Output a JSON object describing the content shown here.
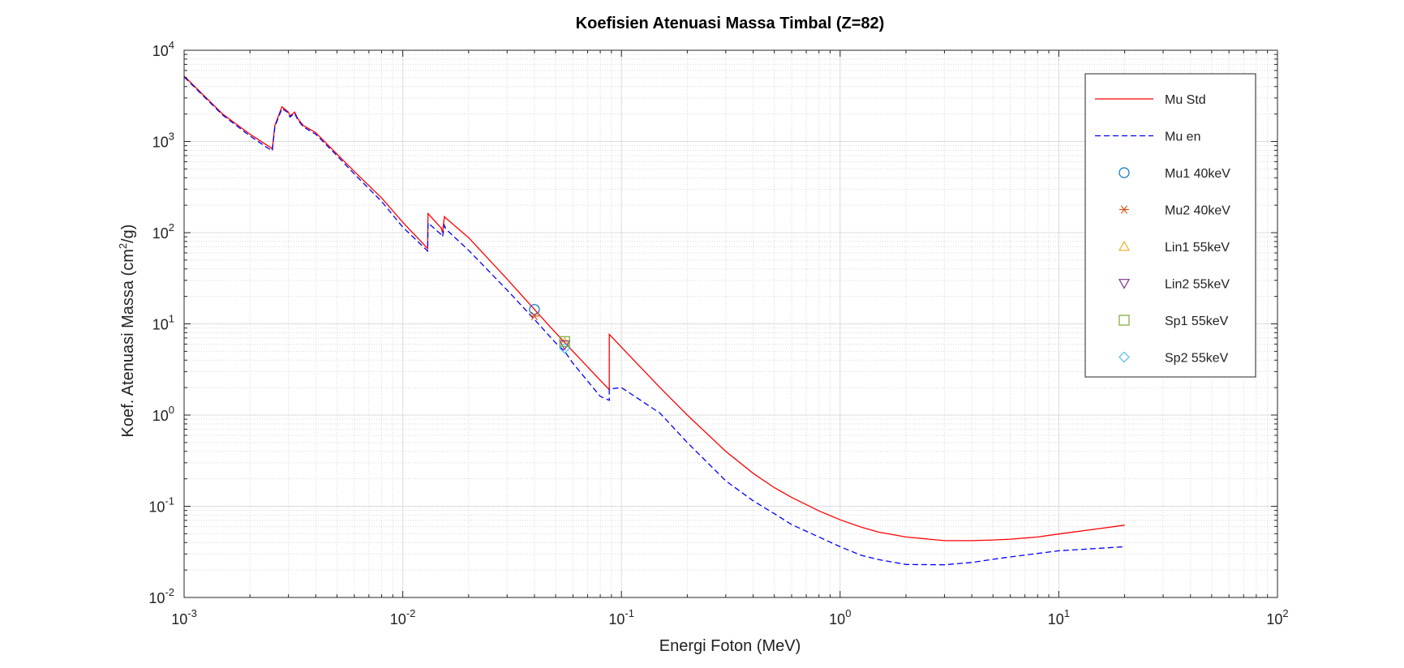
{
  "chart_data": {
    "type": "line",
    "title": "Koefisien Atenuasi Massa Timbal (Z=82)",
    "xlabel": "Energi Foton (MeV)",
    "ylabel": {
      "base": "Koef. Atenuasi Massa (cm",
      "sup": "2",
      "tail": "/g)"
    },
    "xscale": "log",
    "yscale": "log",
    "xlim": [
      0.001,
      100
    ],
    "ylim": [
      0.01,
      10000
    ],
    "x_ticks": [
      {
        "base": "10",
        "exp": "-3",
        "value": 0.001
      },
      {
        "base": "10",
        "exp": "-2",
        "value": 0.01
      },
      {
        "base": "10",
        "exp": "-1",
        "value": 0.1
      },
      {
        "base": "10",
        "exp": "0",
        "value": 1
      },
      {
        "base": "10",
        "exp": "1",
        "value": 10
      },
      {
        "base": "10",
        "exp": "2",
        "value": 100
      }
    ],
    "y_ticks": [
      {
        "base": "10",
        "exp": "-2",
        "value": 0.01
      },
      {
        "base": "10",
        "exp": "-1",
        "value": 0.1
      },
      {
        "base": "10",
        "exp": "0",
        "value": 1
      },
      {
        "base": "10",
        "exp": "1",
        "value": 10
      },
      {
        "base": "10",
        "exp": "2",
        "value": 100
      },
      {
        "base": "10",
        "exp": "3",
        "value": 1000
      },
      {
        "base": "10",
        "exp": "4",
        "value": 10000
      }
    ],
    "grid": true,
    "minor_grid": true,
    "legend_position": "top-right",
    "series": [
      {
        "name": "Mu Std",
        "style": "solid",
        "color": "#ff0000",
        "x": [
          0.001,
          0.0015,
          0.002,
          0.0025,
          0.00253,
          0.0026,
          0.0028,
          0.003,
          0.00305,
          0.0032,
          0.0033,
          0.0035,
          0.004,
          0.005,
          0.006,
          0.008,
          0.01,
          0.013,
          0.01304,
          0.015,
          0.0152,
          0.0155,
          0.0157,
          0.02,
          0.03,
          0.04,
          0.05,
          0.06,
          0.08,
          0.088,
          0.08801,
          0.1,
          0.15,
          0.2,
          0.3,
          0.4,
          0.5,
          0.6,
          0.8,
          1.0,
          1.25,
          1.5,
          2.0,
          3.0,
          4.0,
          5.0,
          6.0,
          8.0,
          10.0,
          15.0,
          20.0
        ],
        "y": [
          5200,
          2000,
          1200,
          850,
          820,
          1500,
          2400,
          2100,
          1900,
          2100,
          1800,
          1500,
          1250,
          730,
          470,
          240,
          130,
          67,
          162,
          112,
          100,
          150,
          145,
          88,
          31,
          14.4,
          8.0,
          5.0,
          2.4,
          1.9,
          7.68,
          5.55,
          2.0,
          1.0,
          0.4,
          0.23,
          0.16,
          0.125,
          0.089,
          0.071,
          0.059,
          0.052,
          0.046,
          0.042,
          0.042,
          0.0427,
          0.0436,
          0.046,
          0.0497,
          0.0565,
          0.0621
        ]
      },
      {
        "name": "Mu en",
        "style": "dashed",
        "color": "#0000ff",
        "x": [
          0.001,
          0.0015,
          0.002,
          0.0025,
          0.00253,
          0.0026,
          0.0028,
          0.003,
          0.00305,
          0.0032,
          0.0033,
          0.0035,
          0.004,
          0.005,
          0.006,
          0.008,
          0.01,
          0.013,
          0.01304,
          0.015,
          0.0152,
          0.0155,
          0.0157,
          0.02,
          0.03,
          0.04,
          0.05,
          0.055,
          0.06,
          0.08,
          0.088,
          0.08801,
          0.1,
          0.15,
          0.2,
          0.3,
          0.4,
          0.5,
          0.6,
          0.8,
          1.0,
          1.25,
          1.5,
          2.0,
          3.0,
          4.0,
          5.0,
          6.0,
          8.0,
          10.0,
          15.0,
          20.0
        ],
        "y": [
          5100,
          1950,
          1150,
          800,
          790,
          1450,
          2300,
          2050,
          1850,
          2050,
          1750,
          1450,
          1200,
          700,
          440,
          220,
          115,
          63,
          128,
          95,
          90,
          120,
          110,
          64,
          23.5,
          11.2,
          6.2,
          5.0,
          3.7,
          1.6,
          1.45,
          1.93,
          2.0,
          1.05,
          0.5,
          0.19,
          0.115,
          0.083,
          0.063,
          0.046,
          0.036,
          0.029,
          0.026,
          0.023,
          0.0228,
          0.0242,
          0.0262,
          0.0278,
          0.0304,
          0.0325,
          0.0345,
          0.036
        ]
      }
    ],
    "points": [
      {
        "name": "Mu1 40keV",
        "marker": "circle",
        "color": "#0072bd",
        "x": 0.04,
        "y": 14.4
      },
      {
        "name": "Mu2 40keV",
        "marker": "asterisk",
        "color": "#d95319",
        "x": 0.04,
        "y": 12.2
      },
      {
        "name": "Lin1 55keV",
        "marker": "triangle-up",
        "color": "#edb120",
        "x": 0.055,
        "y": 6.2
      },
      {
        "name": "Lin2 55keV",
        "marker": "triangle-down",
        "color": "#7e2f8e",
        "x": 0.055,
        "y": 5.9
      },
      {
        "name": "Sp1 55keV",
        "marker": "square",
        "color": "#77ac30",
        "x": 0.055,
        "y": 6.4
      },
      {
        "name": "Sp2 55keV",
        "marker": "diamond",
        "color": "#4dbeee",
        "x": 0.055,
        "y": 5.4
      }
    ]
  }
}
